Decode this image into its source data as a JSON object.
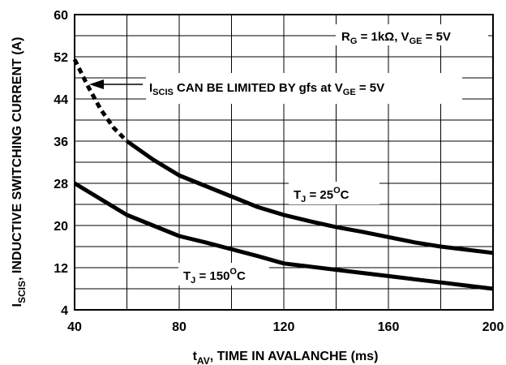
{
  "chart_data": {
    "type": "line",
    "xlabel": {
      "main": "t",
      "sub": "AV",
      "rest": ", TIME IN AVALANCHE (ms)"
    },
    "ylabel": {
      "main": "I",
      "sub": "SCIS",
      "rest": ", INDUCTIVE SWITCHING CURRENT (A)"
    },
    "xlim": [
      40,
      200
    ],
    "ylim": [
      4,
      60
    ],
    "x_ticks": [
      40,
      80,
      120,
      160,
      200
    ],
    "y_ticks": [
      4,
      12,
      20,
      28,
      36,
      44,
      52,
      60
    ],
    "x_minor_step": 20,
    "y_minor_step": 4,
    "grid": true,
    "series": [
      {
        "name": "25C",
        "label_main": "T",
        "label_sub": "J",
        "label_rest": " = 25",
        "label_sup": "O",
        "label_unit": "C",
        "dashed_x_max": 60,
        "x": [
          40,
          45,
          50,
          55,
          60,
          70,
          80,
          90,
          100,
          110,
          120,
          130,
          140,
          150,
          160,
          170,
          180,
          190,
          200
        ],
        "y": [
          51.5,
          46.5,
          42.0,
          38.5,
          36.0,
          32.5,
          29.5,
          27.5,
          25.5,
          23.5,
          22.0,
          20.8,
          19.7,
          18.8,
          17.8,
          16.8,
          16.0,
          15.4,
          14.8
        ]
      },
      {
        "name": "150C",
        "label_main": "T",
        "label_sub": "J",
        "label_rest": " = 150",
        "label_sup": "O",
        "label_unit": "C",
        "x": [
          40,
          50,
          60,
          70,
          80,
          90,
          100,
          110,
          120,
          130,
          140,
          150,
          160,
          170,
          180,
          190,
          200
        ],
        "y": [
          28.0,
          25.0,
          22.0,
          20.0,
          18.0,
          16.8,
          15.5,
          14.2,
          12.8,
          12.2,
          11.6,
          11.0,
          10.4,
          9.8,
          9.2,
          8.6,
          8.0
        ]
      }
    ],
    "annotations": {
      "conditions": {
        "r": "R",
        "r_sub": "G",
        "r_rest": " = 1kΩ, V",
        "v_sub": "GE",
        "v_rest": " = 5V"
      },
      "limit_note": {
        "i": "I",
        "i_sub": "SCIS",
        "mid": " CAN BE LIMITED BY gfs at V",
        "v_sub": "GE",
        "end": " = 5V"
      }
    }
  }
}
